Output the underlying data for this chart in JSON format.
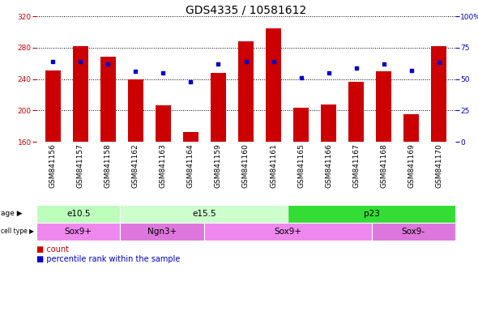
{
  "title": "GDS4335 / 10581612",
  "samples": [
    "GSM841156",
    "GSM841157",
    "GSM841158",
    "GSM841162",
    "GSM841163",
    "GSM841164",
    "GSM841159",
    "GSM841160",
    "GSM841161",
    "GSM841165",
    "GSM841166",
    "GSM841167",
    "GSM841168",
    "GSM841169",
    "GSM841170"
  ],
  "counts": [
    251,
    282,
    268,
    240,
    206,
    172,
    248,
    288,
    305,
    203,
    208,
    236,
    250,
    195,
    282
  ],
  "percentiles": [
    64,
    64,
    62,
    56,
    55,
    48,
    62,
    64,
    64,
    51,
    55,
    59,
    62,
    57,
    63
  ],
  "ylim_left": [
    160,
    320
  ],
  "ylim_right": [
    0,
    100
  ],
  "yticks_left": [
    160,
    200,
    240,
    280,
    320
  ],
  "yticks_right": [
    0,
    25,
    50,
    75,
    100
  ],
  "bar_color": "#cc0000",
  "dot_color": "#0000cc",
  "age_groups": [
    {
      "label": "e10.5",
      "start": 0,
      "end": 3,
      "color": "#bbffbb"
    },
    {
      "label": "e15.5",
      "start": 3,
      "end": 9,
      "color": "#ccffcc"
    },
    {
      "label": "p23",
      "start": 9,
      "end": 15,
      "color": "#33dd33"
    }
  ],
  "cell_groups": [
    {
      "label": "Sox9+",
      "start": 0,
      "end": 3,
      "color": "#ee88ee"
    },
    {
      "label": "Ngn3+",
      "start": 3,
      "end": 6,
      "color": "#dd77dd"
    },
    {
      "label": "Sox9+",
      "start": 6,
      "end": 12,
      "color": "#ee88ee"
    },
    {
      "label": "Sox9-",
      "start": 12,
      "end": 15,
      "color": "#dd77dd"
    }
  ],
  "grid_color": "#000000",
  "bg_color": "#ffffff",
  "xtick_bg": "#cccccc",
  "title_fontsize": 10,
  "tick_fontsize": 6.5,
  "annot_fontsize": 7.5,
  "legend_fontsize": 7
}
